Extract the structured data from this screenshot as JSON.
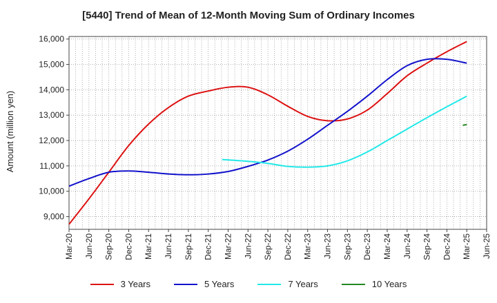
{
  "chart_data": {
    "type": "line",
    "title": "[5440]  Trend of Mean of 12-Month Moving Sum of Ordinary Incomes",
    "xlabel": "",
    "ylabel": "Amount (million yen)",
    "ylim": [
      8500,
      16100
    ],
    "yticks": [
      9000,
      10000,
      11000,
      12000,
      13000,
      14000,
      15000,
      16000
    ],
    "ytick_labels": [
      "9,000",
      "10,000",
      "11,000",
      "12,000",
      "13,000",
      "14,000",
      "15,000",
      "16,000"
    ],
    "x_categories": [
      "Mar-20",
      "Jun-20",
      "Sep-20",
      "Dec-20",
      "Mar-21",
      "Jun-21",
      "Sep-21",
      "Dec-21",
      "Mar-22",
      "Jun-22",
      "Sep-22",
      "Dec-22",
      "Mar-23",
      "Jun-23",
      "Sep-23",
      "Dec-23",
      "Mar-24",
      "Jun-24",
      "Sep-24",
      "Dec-24",
      "Mar-25",
      "Jun-25"
    ],
    "series": [
      {
        "name": "3 Years",
        "color": "#dd1111",
        "x": [
          0,
          1,
          2,
          3,
          4,
          5,
          6,
          7,
          8,
          9,
          10,
          11,
          12,
          13,
          14,
          15,
          16,
          17,
          18,
          19,
          20
        ],
        "values": [
          8700,
          9700,
          10750,
          11800,
          12650,
          13300,
          13750,
          13950,
          14100,
          14100,
          13800,
          13350,
          12950,
          12780,
          12850,
          13200,
          13850,
          14550,
          15050,
          15500,
          15900
        ]
      },
      {
        "name": "5 Years",
        "color": "#1111cc",
        "x": [
          0,
          1,
          2,
          3,
          4,
          5,
          6,
          7,
          8,
          9,
          10,
          11,
          12,
          13,
          14,
          15,
          16,
          17,
          18,
          19,
          20
        ],
        "values": [
          10200,
          10500,
          10750,
          10800,
          10750,
          10680,
          10650,
          10680,
          10780,
          10980,
          11230,
          11580,
          12050,
          12600,
          13150,
          13750,
          14400,
          14950,
          15200,
          15200,
          15050
        ]
      },
      {
        "name": "7 Years",
        "color": "#22e8e8",
        "x": [
          7.7,
          9,
          10,
          11,
          12,
          13,
          14,
          15,
          16,
          17,
          18,
          19,
          20
        ],
        "values": [
          11250,
          11180,
          11100,
          10980,
          10950,
          11000,
          11200,
          11550,
          12000,
          12450,
          12900,
          13330,
          13750
        ]
      },
      {
        "name": "10 Years",
        "color": "#228822",
        "x": [
          19.8,
          20
        ],
        "values": [
          12600,
          12630
        ]
      }
    ],
    "legend": [
      "3 Years",
      "5 Years",
      "7 Years",
      "10 Years"
    ],
    "grid": true
  }
}
